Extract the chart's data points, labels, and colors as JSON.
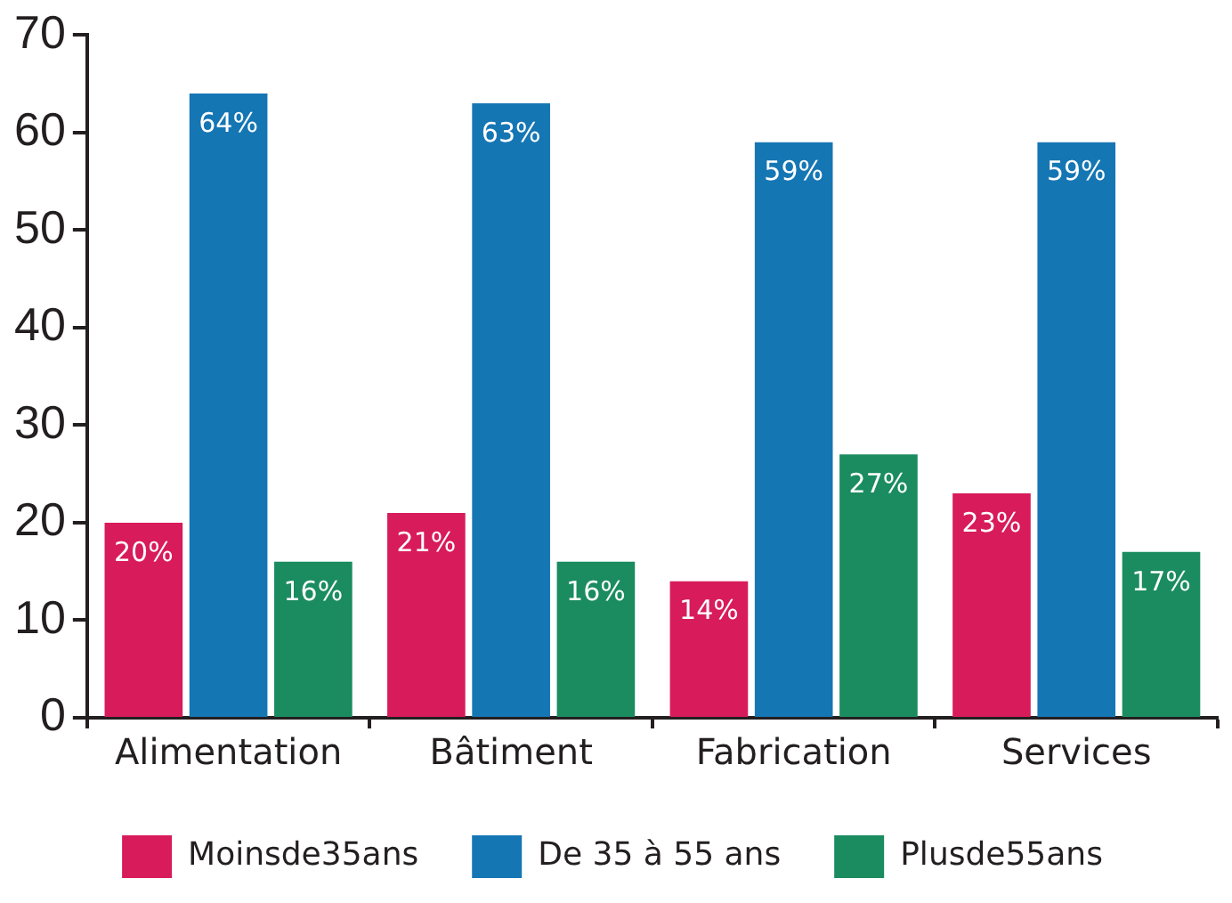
{
  "chart_data": {
    "type": "bar",
    "categories": [
      "Alimentation",
      "Bâtiment",
      "Fabrication",
      "Services"
    ],
    "series": [
      {
        "name": "Moinsde35ans",
        "color": "#d81b5a",
        "values": [
          20,
          21,
          14,
          23
        ],
        "value_labels": [
          "20%",
          "21%",
          "14%",
          "23%"
        ]
      },
      {
        "name": "De 35 à 55 ans",
        "color": "#1576b4",
        "values": [
          64,
          63,
          59,
          59
        ],
        "value_labels": [
          "64%",
          "63%",
          "59%",
          "59%"
        ]
      },
      {
        "name": "Plusde55ans",
        "color": "#1a8c5f",
        "values": [
          16,
          16,
          27,
          17
        ],
        "value_labels": [
          "16%",
          "16%",
          "27%",
          "17%"
        ]
      }
    ],
    "ylim": [
      0,
      70
    ],
    "yticks": [
      0,
      10,
      20,
      30,
      40,
      50,
      60,
      70
    ],
    "grid": false,
    "legend": "bottom"
  }
}
